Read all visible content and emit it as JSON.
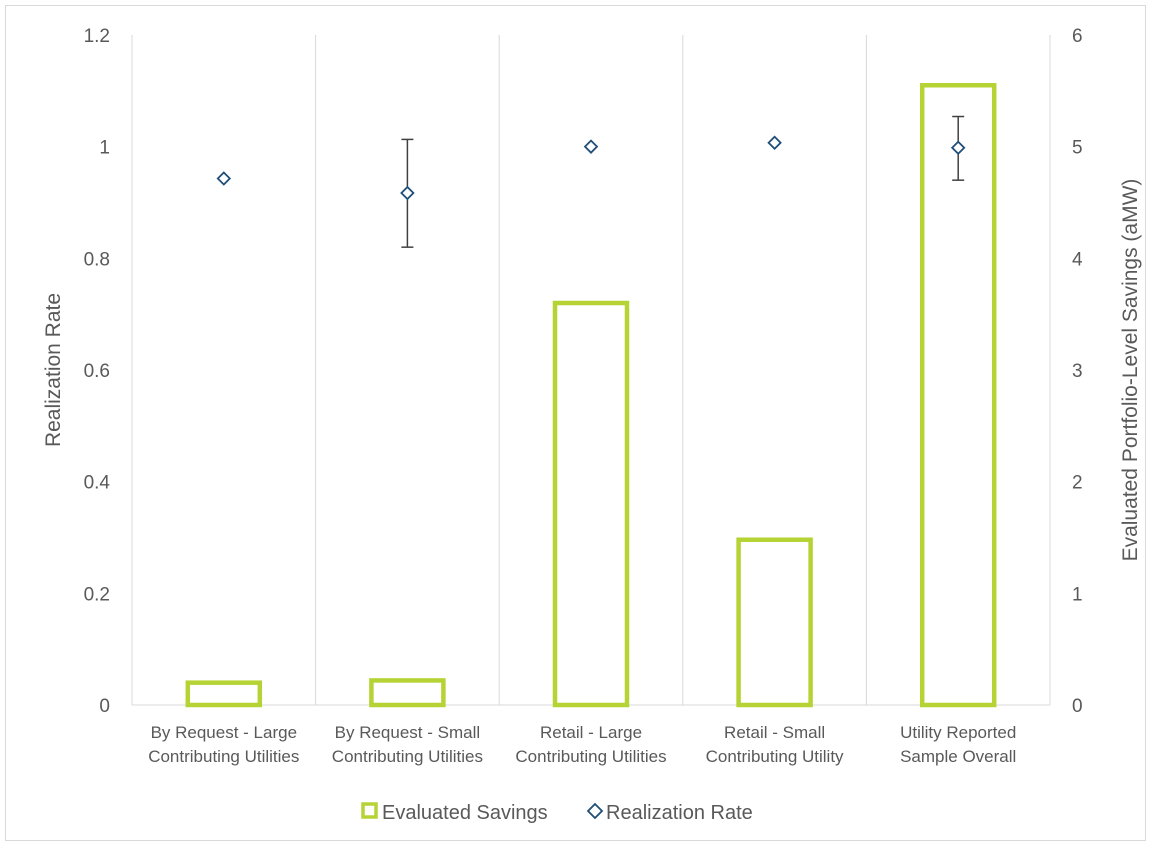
{
  "chart_data": {
    "type": "bar",
    "categories": [
      [
        "By Request - Large",
        "Contributing Utilities"
      ],
      [
        "By Request - Small",
        "Contributing Utilities"
      ],
      [
        "Retail - Large",
        "Contributing Utilities"
      ],
      [
        "Retail - Small",
        "Contributing Utility"
      ],
      [
        "Utility Reported",
        "Sample Overall"
      ]
    ],
    "series": [
      {
        "name": "Evaluated Savings",
        "axis": "right",
        "style": "bar-outline",
        "color": "#b5d334",
        "values": [
          0.2,
          0.22,
          3.6,
          1.48,
          5.55
        ]
      },
      {
        "name": "Realization Rate",
        "axis": "left",
        "style": "diamond-marker",
        "color": "#1f4e79",
        "values": [
          0.943,
          0.917,
          1.0,
          1.007,
          0.998
        ],
        "error_bars": [
          null,
          [
            0.82,
            1.013
          ],
          null,
          null,
          [
            0.94,
            1.054
          ]
        ]
      }
    ],
    "ylabel": "Realization Rate",
    "ylim": [
      0,
      1.2
    ],
    "yticks": [
      "0",
      "0.2",
      "0.4",
      "0.6",
      "0.8",
      "1",
      "1.2"
    ],
    "y2label": "Evaluated Portfolio-Level Savings (aMW)",
    "y2lim": [
      0,
      6
    ],
    "y2ticks": [
      "0",
      "1",
      "2",
      "3",
      "4",
      "5",
      "6"
    ],
    "grid": "vertical-category-lines",
    "legend_position": "bottom"
  },
  "colors": {
    "bar_outline": "#b5d334",
    "marker": "#1f4e79",
    "error_bar": "#404040",
    "grid": "#d9d9d9",
    "text": "#595959"
  }
}
